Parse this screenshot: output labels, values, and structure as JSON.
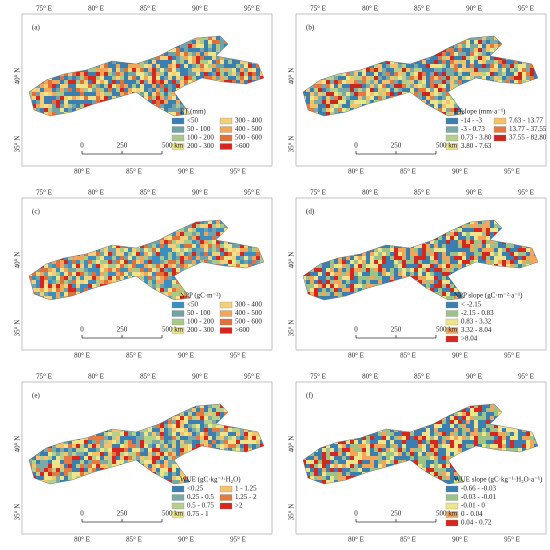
{
  "panels": [
    {
      "letter": "(a)",
      "top_labels": [
        "75° E",
        "80° E",
        "85° E",
        "90° E",
        "95° E"
      ],
      "left_labels": [
        "40° N",
        "35° N"
      ],
      "bottom_labels": [
        "80° E",
        "85° E",
        "90° E",
        "95° E"
      ],
      "scale_labels": [
        "0",
        "250",
        "500 km"
      ],
      "legend_title": "ET (mm)",
      "legend": [
        {
          "label": "<50",
          "color": "#3a7fb0"
        },
        {
          "label": "50 - 100",
          "color": "#6fa3a8"
        },
        {
          "label": "100 - 200",
          "color": "#a9c98a"
        },
        {
          "label": "200 - 300",
          "color": "#eee58a"
        },
        {
          "label": "300 - 400",
          "color": "#f5cf78"
        },
        {
          "label": "400 - 500",
          "color": "#f2a65a"
        },
        {
          "label": "500 - 600",
          "color": "#e2703a"
        },
        {
          "label": ">600",
          "color": "#d7261e"
        }
      ]
    },
    {
      "letter": "(b)",
      "top_labels": [
        "75° E",
        "80° E",
        "85° E",
        "90° E",
        "95° E"
      ],
      "left_labels": [
        "40° N",
        "35° N"
      ],
      "bottom_labels": [
        "80° E",
        "85° E",
        "90° E",
        "95° E"
      ],
      "scale_labels": [
        "0",
        "250",
        "500 km"
      ],
      "legend_title": "ETslope (mm·a⁻¹)",
      "legend": [
        {
          "label": "-14 - -3",
          "color": "#3a7fb0"
        },
        {
          "label": "-3 - 0.73",
          "color": "#7aa9a6"
        },
        {
          "label": "0.73 - 3.80",
          "color": "#b6d08a"
        },
        {
          "label": "3.80 - 7.63",
          "color": "#eee58a"
        },
        {
          "label": "7.63 - 13.77",
          "color": "#f5c26a"
        },
        {
          "label": "13.77 - 37.55",
          "color": "#e5793f"
        },
        {
          "label": "37.55 - 82.80",
          "color": "#c8261e"
        }
      ]
    },
    {
      "letter": "(c)",
      "top_labels": [
        "75° E",
        "80° E",
        "85° E",
        "90° E",
        "95° E"
      ],
      "left_labels": [
        "40° N",
        "35° N"
      ],
      "bottom_labels": [
        "80° E",
        "85° E",
        "90° E",
        "95° E"
      ],
      "scale_labels": [
        "0",
        "250",
        "500 km"
      ],
      "legend_title": "NPP (gC·m⁻²)",
      "legend": [
        {
          "label": "<50",
          "color": "#3a8fc0"
        },
        {
          "label": "50 - 100",
          "color": "#6fa3a8"
        },
        {
          "label": "100 - 200",
          "color": "#a9c98a"
        },
        {
          "label": "200 - 300",
          "color": "#eee58a"
        },
        {
          "label": "300 - 400",
          "color": "#f5cf78"
        },
        {
          "label": "400 - 500",
          "color": "#f2a65a"
        },
        {
          "label": "500 - 600",
          "color": "#e2703a"
        },
        {
          "label": ">600",
          "color": "#d7261e"
        }
      ]
    },
    {
      "letter": "(d)",
      "top_labels": [
        "75° E",
        "80° E",
        "85° E",
        "90° E",
        "95° E"
      ],
      "left_labels": [
        "40° N",
        "35° N"
      ],
      "bottom_labels": [
        "80° E",
        "85° E",
        "90° E",
        "95° E"
      ],
      "scale_labels": [
        "0",
        "250",
        "500 km"
      ],
      "legend_title": "NPP slope (gC·m⁻²·a⁻¹)",
      "legend": [
        {
          "label": "< -2.15",
          "color": "#3a7fb0"
        },
        {
          "label": "-2.15 - 0.83",
          "color": "#9cc28a"
        },
        {
          "label": "0.83 - 3.32",
          "color": "#eee58a"
        },
        {
          "label": "3.32 - 8.04",
          "color": "#f2a65a"
        },
        {
          "label": ">8.04",
          "color": "#d7261e"
        }
      ]
    },
    {
      "letter": "(e)",
      "top_labels": [
        "75° E",
        "80° E",
        "85° E",
        "90° E",
        "95° E"
      ],
      "left_labels": [
        "40° N",
        "35° N"
      ],
      "bottom_labels": [
        "80° E",
        "85° E",
        "90° E",
        "95° E"
      ],
      "scale_labels": [
        "0",
        "250",
        "500 km"
      ],
      "legend_title": "WUE (gC·kg⁻¹·H₂O)",
      "legend": [
        {
          "label": "<0.25",
          "color": "#3a7fb0"
        },
        {
          "label": "0.25 - 0.5",
          "color": "#7aa9a6"
        },
        {
          "label": "0.5 - 0.75",
          "color": "#b6d08a"
        },
        {
          "label": "0.75 - 1",
          "color": "#eee58a"
        },
        {
          "label": "1 - 1.25",
          "color": "#f5c26a"
        },
        {
          "label": "1.25 - 2",
          "color": "#e5793f"
        },
        {
          "label": ">2",
          "color": "#d7261e"
        }
      ]
    },
    {
      "letter": "(f)",
      "top_labels": [
        "75° E",
        "80° E",
        "85° E",
        "90° E",
        "95° E"
      ],
      "left_labels": [
        "40° N",
        "35° N"
      ],
      "bottom_labels": [
        "80° E",
        "85° E",
        "90° E",
        "95° E"
      ],
      "scale_labels": [
        "0",
        "250",
        "500 km"
      ],
      "legend_title": "WUE slope (gC·kg⁻¹·H₂O·a⁻¹)",
      "legend": [
        {
          "label": "-0.66 - -0.03",
          "color": "#3a7fb0"
        },
        {
          "label": "-0.03 - -0.01",
          "color": "#9cc28a"
        },
        {
          "label": "-0.01 - 0",
          "color": "#eee58a"
        },
        {
          "label": "0 - 0.04",
          "color": "#f2a65a"
        },
        {
          "label": "0.04 - 0.72",
          "color": "#d7261e"
        }
      ]
    }
  ]
}
